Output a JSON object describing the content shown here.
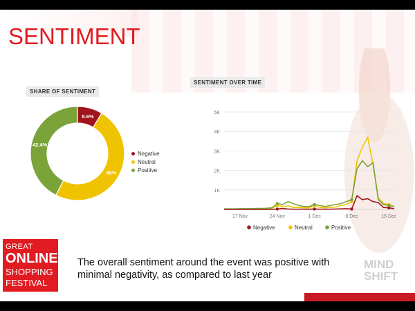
{
  "page": {
    "title": "SENTIMENT",
    "footer_text": "The overall sentiment around the event was positive with minimal negativity, as compared to last year"
  },
  "logo_left": {
    "line1": "GREAT",
    "line2": "ONLINE",
    "line3": "SHOPPING",
    "line4": "FESTIVAL"
  },
  "logo_right": {
    "line1": "MIND",
    "line2": "SHIFT"
  },
  "colors": {
    "negative": "#a1141c",
    "neutral": "#f0c300",
    "positive": "#7aa33a",
    "brand_red": "#e01b22"
  },
  "chart_data": [
    {
      "type": "pie",
      "title": "SHARE OF SENTIMENT",
      "labels": [
        "Negative",
        "Neutral",
        "Positive"
      ],
      "values": [
        8.6,
        49,
        42.4
      ],
      "value_labels": [
        "8.6%",
        "49%",
        "42.4%"
      ],
      "legend": "right"
    },
    {
      "type": "line",
      "title": "SENTIMENT OVER TIME",
      "x_ticks": [
        "17 Nov",
        "24 Nov",
        "1 Dec",
        "8 Dec",
        "15 Dec"
      ],
      "y_ticks": [
        "1K",
        "2K",
        "3K",
        "4K",
        "5K"
      ],
      "ylim": [
        0,
        5000
      ],
      "x": [
        "14 Nov",
        "15 Nov",
        "16 Nov",
        "17 Nov",
        "18 Nov",
        "19 Nov",
        "20 Nov",
        "21 Nov",
        "22 Nov",
        "23 Nov",
        "24 Nov",
        "25 Nov",
        "26 Nov",
        "27 Nov",
        "28 Nov",
        "29 Nov",
        "30 Nov",
        "1 Dec",
        "2 Dec",
        "3 Dec",
        "4 Dec",
        "5 Dec",
        "6 Dec",
        "7 Dec",
        "8 Dec",
        "9 Dec",
        "10 Dec",
        "11 Dec",
        "12 Dec",
        "13 Dec",
        "14 Dec",
        "15 Dec",
        "16 Dec"
      ],
      "series": [
        {
          "name": "Negative",
          "values": [
            0,
            0,
            0,
            0,
            0,
            0,
            0,
            0,
            0,
            0,
            20,
            50,
            20,
            10,
            10,
            10,
            10,
            20,
            10,
            10,
            10,
            20,
            30,
            40,
            20,
            700,
            500,
            550,
            400,
            350,
            100,
            80,
            40
          ]
        },
        {
          "name": "Neutral",
          "values": [
            20,
            20,
            20,
            30,
            30,
            30,
            40,
            40,
            50,
            60,
            200,
            150,
            180,
            100,
            100,
            80,
            80,
            200,
            100,
            80,
            100,
            120,
            200,
            250,
            400,
            2500,
            3200,
            3700,
            2300,
            600,
            300,
            250,
            150
          ]
        },
        {
          "name": "Positive",
          "values": [
            30,
            30,
            30,
            40,
            40,
            40,
            50,
            50,
            60,
            80,
            300,
            250,
            400,
            300,
            200,
            150,
            150,
            250,
            200,
            150,
            200,
            250,
            300,
            400,
            500,
            2100,
            2500,
            2200,
            2400,
            500,
            250,
            200,
            150
          ]
        }
      ],
      "legend": "bottom",
      "grid": true
    }
  ]
}
